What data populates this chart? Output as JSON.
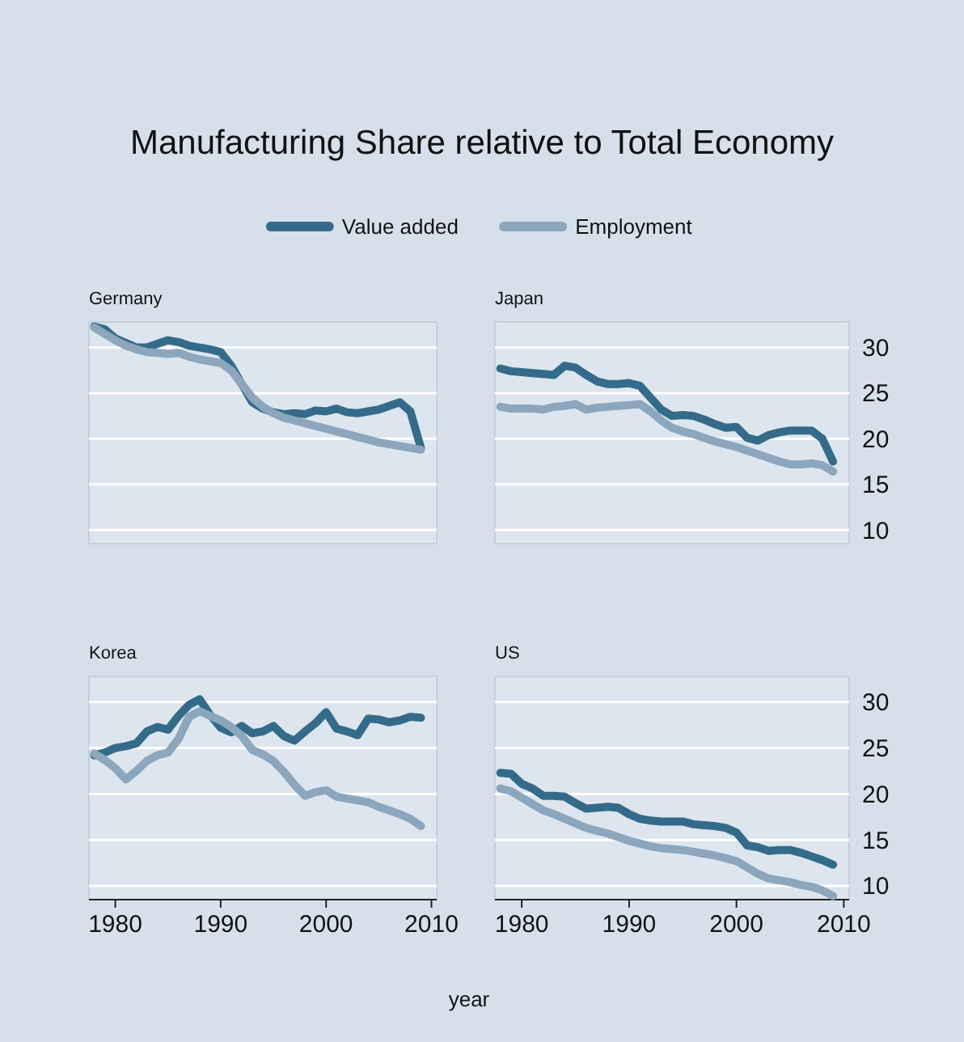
{
  "chart_data": [
    {
      "type": "line",
      "title": "Manufacturing Share relative to Total Economy",
      "subtitle": "Germany",
      "legend": "top",
      "grid": "y",
      "tick_labels": false,
      "xlim": [
        1977.5,
        2010.5
      ],
      "ylim": [
        8.5,
        32.8
      ],
      "yticks": [
        10,
        15,
        20,
        25,
        30
      ],
      "x": [
        1978,
        1979,
        1980,
        1981,
        1982,
        1983,
        1984,
        1985,
        1986,
        1987,
        1988,
        1989,
        1990,
        1991,
        1992,
        1993,
        1994,
        1995,
        1996,
        1997,
        1998,
        1999,
        2000,
        2001,
        2002,
        2003,
        2004,
        2005,
        2006,
        2007,
        2008,
        2009
      ],
      "series": [
        {
          "name": "Value added",
          "color": "#356b8a",
          "values": [
            32.3,
            32,
            31,
            30.5,
            30,
            30,
            30.4,
            30.8,
            30.6,
            30.2,
            30,
            29.8,
            29.5,
            28,
            26,
            24,
            23.3,
            22.9,
            22.7,
            22.8,
            22.7,
            23.1,
            23,
            23.3,
            22.9,
            22.8,
            23,
            23.2,
            23.6,
            24,
            23,
            19
          ]
        },
        {
          "name": "Employment",
          "color": "#8ba6bd",
          "values": [
            32.2,
            31.5,
            30.8,
            30.2,
            29.8,
            29.5,
            29.4,
            29.3,
            29.4,
            29,
            28.7,
            28.5,
            28.3,
            27.5,
            26,
            24.5,
            23.5,
            22.8,
            22.3,
            22,
            21.7,
            21.4,
            21.1,
            20.8,
            20.5,
            20.2,
            19.9,
            19.6,
            19.4,
            19.2,
            19,
            18.8
          ]
        }
      ]
    },
    {
      "type": "line",
      "subtitle": "Japan",
      "grid": "y",
      "tick_labels": "y",
      "xlim": [
        1977.5,
        2010.5
      ],
      "ylim": [
        8.5,
        32.8
      ],
      "yticks": [
        10,
        15,
        20,
        25,
        30
      ],
      "x": [
        1978,
        1979,
        1980,
        1981,
        1982,
        1983,
        1984,
        1985,
        1986,
        1987,
        1988,
        1989,
        1990,
        1991,
        1992,
        1993,
        1994,
        1995,
        1996,
        1997,
        1998,
        1999,
        2000,
        2001,
        2002,
        2003,
        2004,
        2005,
        2006,
        2007,
        2008,
        2009
      ],
      "series": [
        {
          "name": "Value added",
          "color": "#356b8a",
          "values": [
            27.7,
            27.4,
            27.3,
            27.2,
            27.1,
            27,
            28,
            27.8,
            27,
            26.3,
            26,
            26,
            26.1,
            25.8,
            24.5,
            23.2,
            22.5,
            22.6,
            22.5,
            22.1,
            21.6,
            21.2,
            21.3,
            20.1,
            19.8,
            20.4,
            20.7,
            20.9,
            20.9,
            20.9,
            20,
            17.5
          ]
        },
        {
          "name": "Employment",
          "color": "#8ba6bd",
          "values": [
            23.5,
            23.3,
            23.3,
            23.3,
            23.2,
            23.5,
            23.6,
            23.8,
            23.2,
            23.4,
            23.5,
            23.6,
            23.7,
            23.8,
            23,
            22,
            21.2,
            20.8,
            20.5,
            20.1,
            19.7,
            19.4,
            19.1,
            18.7,
            18.3,
            17.9,
            17.5,
            17.2,
            17.2,
            17.3,
            17.1,
            16.4
          ]
        }
      ]
    },
    {
      "type": "line",
      "subtitle": "Korea",
      "xlabel": "year",
      "grid": "y",
      "tick_labels": "x",
      "xlim": [
        1977.5,
        2010.5
      ],
      "ylim": [
        8.5,
        32.8
      ],
      "xticks": [
        1980,
        1990,
        2000,
        2010
      ],
      "yticks": [
        10,
        15,
        20,
        25,
        30
      ],
      "x": [
        1978,
        1979,
        1980,
        1981,
        1982,
        1983,
        1984,
        1985,
        1986,
        1987,
        1988,
        1989,
        1990,
        1991,
        1992,
        1993,
        1994,
        1995,
        1996,
        1997,
        1998,
        1999,
        2000,
        2001,
        2002,
        2003,
        2004,
        2005,
        2006,
        2007,
        2008,
        2009
      ],
      "series": [
        {
          "name": "Value added",
          "color": "#356b8a",
          "values": [
            24.2,
            24.5,
            25,
            25.2,
            25.5,
            26.8,
            27.3,
            27,
            28.5,
            29.7,
            30.3,
            28.6,
            27.2,
            26.7,
            27.4,
            26.6,
            26.8,
            27.4,
            26.3,
            25.8,
            26.8,
            27.7,
            28.9,
            27.1,
            26.8,
            26.4,
            28.2,
            28.1,
            27.8,
            28,
            28.4,
            28.3
          ]
        },
        {
          "name": "Employment",
          "color": "#8ba6bd",
          "values": [
            24.4,
            23.7,
            22.8,
            21.6,
            22.5,
            23.6,
            24.2,
            24.5,
            26,
            28.4,
            29,
            28.5,
            28,
            27.3,
            26.3,
            24.8,
            24.3,
            23.6,
            22.4,
            21,
            19.8,
            20.2,
            20.4,
            19.7,
            19.5,
            19.3,
            19.1,
            18.6,
            18.2,
            17.8,
            17.3,
            16.5
          ]
        }
      ]
    },
    {
      "type": "line",
      "subtitle": "US",
      "grid": "y",
      "xlim": [
        1977.5,
        2010.5
      ],
      "ylim": [
        8.5,
        32.8
      ],
      "xticks": [
        1980,
        1990,
        2000,
        2010
      ],
      "yticks": [
        10,
        15,
        20,
        25,
        30
      ],
      "x": [
        1978,
        1979,
        1980,
        1981,
        1982,
        1983,
        1984,
        1985,
        1986,
        1987,
        1988,
        1989,
        1990,
        1991,
        1992,
        1993,
        1994,
        1995,
        1996,
        1997,
        1998,
        1999,
        2000,
        2001,
        2002,
        2003,
        2004,
        2005,
        2006,
        2007,
        2008,
        2009
      ],
      "series": [
        {
          "name": "Value added",
          "color": "#356b8a",
          "values": [
            22.3,
            22.2,
            21.1,
            20.6,
            19.8,
            19.8,
            19.7,
            19,
            18.4,
            18.5,
            18.6,
            18.5,
            17.8,
            17.3,
            17.1,
            17,
            17,
            17,
            16.7,
            16.6,
            16.5,
            16.3,
            15.8,
            14.4,
            14.2,
            13.8,
            13.9,
            13.9,
            13.6,
            13.2,
            12.8,
            12.3
          ]
        },
        {
          "name": "Employment",
          "color": "#8ba6bd",
          "values": [
            20.6,
            20.3,
            19.6,
            18.9,
            18.2,
            17.8,
            17.3,
            16.8,
            16.3,
            16,
            15.7,
            15.3,
            14.9,
            14.6,
            14.3,
            14.1,
            14,
            13.9,
            13.7,
            13.5,
            13.3,
            13,
            12.7,
            12,
            11.3,
            10.8,
            10.6,
            10.4,
            10.1,
            9.9,
            9.5,
            8.9
          ]
        }
      ]
    }
  ]
}
